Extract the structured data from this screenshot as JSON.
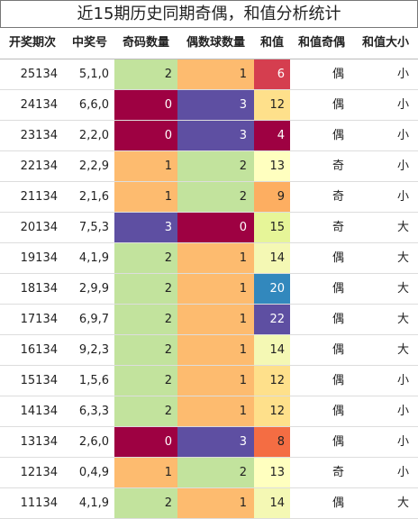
{
  "header": {
    "title": "近15期历史同期奇偶，和值分析统计"
  },
  "table": {
    "columns": [
      "开奖期次",
      "中奖号",
      "奇码数量",
      "偶数球数量",
      "和值",
      "和值奇偶",
      "和值大小"
    ],
    "rows": [
      [
        "25134",
        "5,1,0",
        "2",
        "1",
        "6",
        "偶",
        "小"
      ],
      [
        "24134",
        "6,6,0",
        "0",
        "3",
        "12",
        "偶",
        "小"
      ],
      [
        "23134",
        "2,2,0",
        "0",
        "3",
        "4",
        "偶",
        "小"
      ],
      [
        "22134",
        "2,2,9",
        "1",
        "2",
        "13",
        "奇",
        "小"
      ],
      [
        "21134",
        "2,1,6",
        "1",
        "2",
        "9",
        "奇",
        "小"
      ],
      [
        "20134",
        "7,5,3",
        "3",
        "0",
        "15",
        "奇",
        "大"
      ],
      [
        "19134",
        "4,1,9",
        "2",
        "1",
        "14",
        "偶",
        "大"
      ],
      [
        "18134",
        "2,9,9",
        "2",
        "1",
        "20",
        "偶",
        "大"
      ],
      [
        "17134",
        "6,9,7",
        "2",
        "1",
        "22",
        "偶",
        "大"
      ],
      [
        "16134",
        "9,2,3",
        "2",
        "1",
        "14",
        "偶",
        "大"
      ],
      [
        "15134",
        "1,5,6",
        "2",
        "1",
        "12",
        "偶",
        "小"
      ],
      [
        "14134",
        "6,3,3",
        "2",
        "1",
        "12",
        "偶",
        "小"
      ],
      [
        "13134",
        "2,6,0",
        "0",
        "3",
        "8",
        "偶",
        "小"
      ],
      [
        "12134",
        "0,4,9",
        "1",
        "2",
        "13",
        "奇",
        "小"
      ],
      [
        "11134",
        "4,1,9",
        "2",
        "1",
        "14",
        "偶",
        "大"
      ]
    ],
    "colors": [
      [
        "#c2e39d",
        "#fdbb6f",
        "#d53e4f"
      ],
      [
        "#9e0142",
        "#5e4fa2",
        "#fee08b"
      ],
      [
        "#9e0142",
        "#5e4fa2",
        "#9e0142"
      ],
      [
        "#fdbb6f",
        "#c2e39d",
        "#ffffbf"
      ],
      [
        "#fdbb6f",
        "#c2e39d",
        "#fdae61"
      ],
      [
        "#5e4fa2",
        "#9e0142",
        "#e6f598"
      ],
      [
        "#c2e39d",
        "#fdbb6f",
        "#f4f8b4"
      ],
      [
        "#c2e39d",
        "#fdbb6f",
        "#3288bd"
      ],
      [
        "#c2e39d",
        "#fdbb6f",
        "#5e4fa2"
      ],
      [
        "#c2e39d",
        "#fdbb6f",
        "#f4f8b4"
      ],
      [
        "#c2e39d",
        "#fdbb6f",
        "#fee08b"
      ],
      [
        "#c2e39d",
        "#fdbb6f",
        "#fee08b"
      ],
      [
        "#9e0142",
        "#5e4fa2",
        "#f46d43"
      ],
      [
        "#fdbb6f",
        "#c2e39d",
        "#ffffbf"
      ],
      [
        "#c2e39d",
        "#fdbb6f",
        "#f4f8b4"
      ]
    ]
  }
}
